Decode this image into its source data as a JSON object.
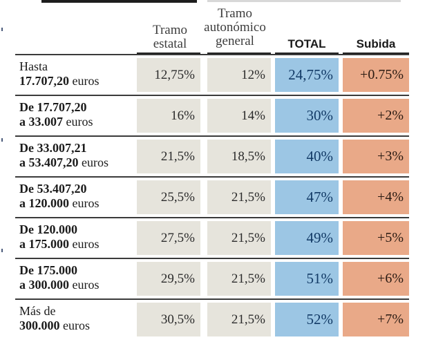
{
  "headers": {
    "estatal": [
      "Tramo",
      "estatal"
    ],
    "autonomico": [
      "Tramo",
      "autonómico",
      "general"
    ],
    "total": "TOTAL",
    "subida": "Subida"
  },
  "rows": [
    {
      "label1": "Hasta",
      "label2": "17.707,20",
      "label2_tail": " euros",
      "estatal": "12,75%",
      "autonomico": "12%",
      "total": "24,75%",
      "subida": "+0.75%"
    },
    {
      "label1": "De 17.707,20",
      "label2": "a 33.007",
      "label2_tail": " euros",
      "estatal": "16%",
      "autonomico": "14%",
      "total": "30%",
      "subida": "+2%"
    },
    {
      "label1": "De 33.007,21",
      "label2": "a 53.407,20",
      "label2_tail": " euros",
      "estatal": "21,5%",
      "autonomico": "18,5%",
      "total": "40%",
      "subida": "+3%"
    },
    {
      "label1": "De 53.407,20",
      "label2": "a 120.000",
      "label2_tail": " euros",
      "estatal": "25,5%",
      "autonomico": "21,5%",
      "total": "47%",
      "subida": "+4%"
    },
    {
      "label1": "De 120.000",
      "label2": "a 175.000",
      "label2_tail": " euros",
      "estatal": "27,5%",
      "autonomico": "21,5%",
      "total": "49%",
      "subida": "+5%"
    },
    {
      "label1": "De 175.000",
      "label2": "a 300.000",
      "label2_tail": " euros",
      "estatal": "29,5%",
      "autonomico": "21,5%",
      "total": "51%",
      "subida": "+6%"
    },
    {
      "label1": "Más de",
      "label2": "300.000",
      "label2_tail": " euros",
      "estatal": "30,5%",
      "autonomico": "21,5%",
      "total": "52%",
      "subida": "+7%"
    }
  ],
  "colors": {
    "estatal_bg": "#e6e4dc",
    "autonomico_bg": "#e6e4dc",
    "total_bg": "#9cc6e4",
    "subida_bg": "#e9a988"
  }
}
